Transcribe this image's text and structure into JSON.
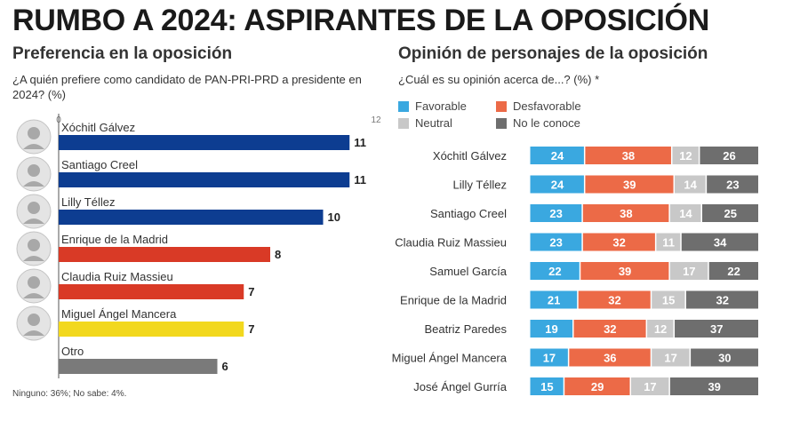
{
  "title": "RUMBO A 2024: ASPIRANTES DE LA OPOSICIÓN",
  "left": {
    "subtitle": "Preferencia en la oposición",
    "question": "¿A quién prefiere como candidato de PAN-PRI-PRD a presidente en 2024? (%)",
    "footnote": "Ninguno: 36%; No sabe: 4%."
  },
  "right": {
    "subtitle": "Opinión de personajes de la oposición",
    "question": "¿Cuál es su opinión acerca de...? (%) *"
  },
  "chart_data": [
    {
      "type": "bar",
      "orientation": "horizontal",
      "xlim": [
        0,
        12
      ],
      "ticks": [
        "0",
        "12"
      ],
      "categories": [
        "Xóchitl Gálvez",
        "Santiago Creel",
        "Lilly Téllez",
        "Enrique de la Madrid",
        "Claudia Ruiz Massieu",
        "Miguel Ángel Mancera",
        "Otro"
      ],
      "values": [
        11,
        11,
        10,
        8,
        7,
        7,
        6
      ],
      "colors": [
        "#0d3d91",
        "#0d3d91",
        "#0d3d91",
        "#d93a26",
        "#d93a26",
        "#f2d81e",
        "#7a7a7a"
      ]
    },
    {
      "type": "bar",
      "orientation": "horizontal",
      "stacked": true,
      "legend_position": "top",
      "categories": [
        "Xóchitl Gálvez",
        "Lilly Téllez",
        "Santiago Creel",
        "Claudia Ruiz Massieu",
        "Samuel García",
        "Enrique de la Madrid",
        "Beatriz Paredes",
        "Miguel Ángel Mancera",
        "José Ángel Gurría"
      ],
      "series": [
        {
          "name": "Favorable",
          "color": "#3aa8e0",
          "values": [
            24,
            24,
            23,
            23,
            22,
            21,
            19,
            17,
            15
          ]
        },
        {
          "name": "Desfavorable",
          "color": "#ec6a47",
          "values": [
            38,
            39,
            38,
            32,
            39,
            32,
            32,
            36,
            29
          ]
        },
        {
          "name": "Neutral",
          "color": "#c8c8c8",
          "values": [
            12,
            14,
            14,
            11,
            17,
            15,
            12,
            17,
            17
          ]
        },
        {
          "name": "No le conoce",
          "color": "#6e6e6e",
          "values": [
            26,
            23,
            25,
            34,
            22,
            32,
            37,
            30,
            39
          ]
        }
      ]
    }
  ]
}
